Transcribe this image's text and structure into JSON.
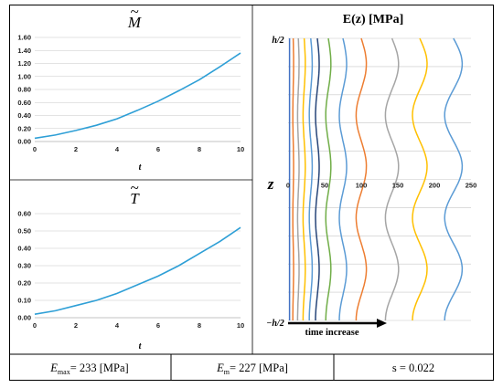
{
  "titles": {
    "moment_symbol": "M",
    "torque_symbol": "T",
    "modulus_prefix": "E(z) [MPa]"
  },
  "footer": {
    "emax_value": "= 233 [MPa]",
    "em_value": "= 227 [MPa]",
    "s_value": "s = 0.022"
  },
  "annotations": {
    "time_increase": "time increase",
    "z_axis": "z",
    "h_top": "h/2",
    "h_bottom": "−h/2"
  },
  "colors": {
    "line_blue": "#2e9fd6",
    "grid": "#c8c8c8"
  },
  "chart_data": [
    {
      "type": "line",
      "title": "M̃",
      "xlabel": "t",
      "ylabel": "",
      "xlim": [
        0,
        10
      ],
      "ylim": [
        0,
        1.6
      ],
      "x_ticks": [
        0,
        2,
        4,
        6,
        8,
        10
      ],
      "y_ticks": [
        "0.00",
        "0.20",
        "0.40",
        "0.60",
        "0.80",
        "1.00",
        "1.20",
        "1.40",
        "1.60"
      ],
      "grid": "horizontal",
      "series": [
        {
          "x": [
            0,
            1,
            2,
            3,
            4,
            5,
            6,
            7,
            8,
            9,
            10
          ],
          "y": [
            0.05,
            0.1,
            0.17,
            0.25,
            0.35,
            0.48,
            0.62,
            0.78,
            0.95,
            1.15,
            1.36
          ]
        }
      ]
    },
    {
      "type": "line",
      "title": "T̃",
      "xlabel": "t",
      "ylabel": "",
      "xlim": [
        0,
        10
      ],
      "ylim": [
        0,
        0.6
      ],
      "x_ticks": [
        0,
        2,
        4,
        6,
        8,
        10
      ],
      "y_ticks": [
        "0.00",
        "0.10",
        "0.20",
        "0.30",
        "0.40",
        "0.50",
        "0.60"
      ],
      "grid": "horizontal",
      "series": [
        {
          "x": [
            0,
            1,
            2,
            3,
            4,
            5,
            6,
            7,
            8,
            9,
            10
          ],
          "y": [
            0.02,
            0.04,
            0.07,
            0.1,
            0.14,
            0.19,
            0.24,
            0.3,
            0.37,
            0.44,
            0.52
          ]
        }
      ]
    },
    {
      "type": "line",
      "title": "E(z) [MPa]",
      "xlabel": "",
      "ylabel": "z",
      "xlim": [
        0,
        250
      ],
      "x_ticks": [
        0,
        50,
        100,
        150,
        200,
        250
      ],
      "grid": "horizontal",
      "annotation": "time increase",
      "series": [
        {
          "mean": 2,
          "amp": 0,
          "color": "#4472c4"
        },
        {
          "mean": 7,
          "amp": 0.5,
          "color": "#ed7d31"
        },
        {
          "mean": 14,
          "amp": 1,
          "color": "#a5a5a5"
        },
        {
          "mean": 22,
          "amp": 1.5,
          "color": "#ffc000"
        },
        {
          "mean": 31,
          "amp": 2,
          "color": "#5b9bd5"
        },
        {
          "mean": 40,
          "amp": 2.5,
          "color": "#264478"
        },
        {
          "mean": 55,
          "amp": 3.5,
          "color": "#70ad47"
        },
        {
          "mean": 75,
          "amp": 5,
          "color": "#5b9bd5"
        },
        {
          "mean": 100,
          "amp": 7,
          "color": "#ed7d31"
        },
        {
          "mean": 142,
          "amp": 9,
          "color": "#a5a5a5"
        },
        {
          "mean": 180,
          "amp": 10,
          "color": "#ffc000"
        },
        {
          "mean": 226,
          "amp": 12,
          "color": "#5b9bd5"
        }
      ]
    }
  ]
}
